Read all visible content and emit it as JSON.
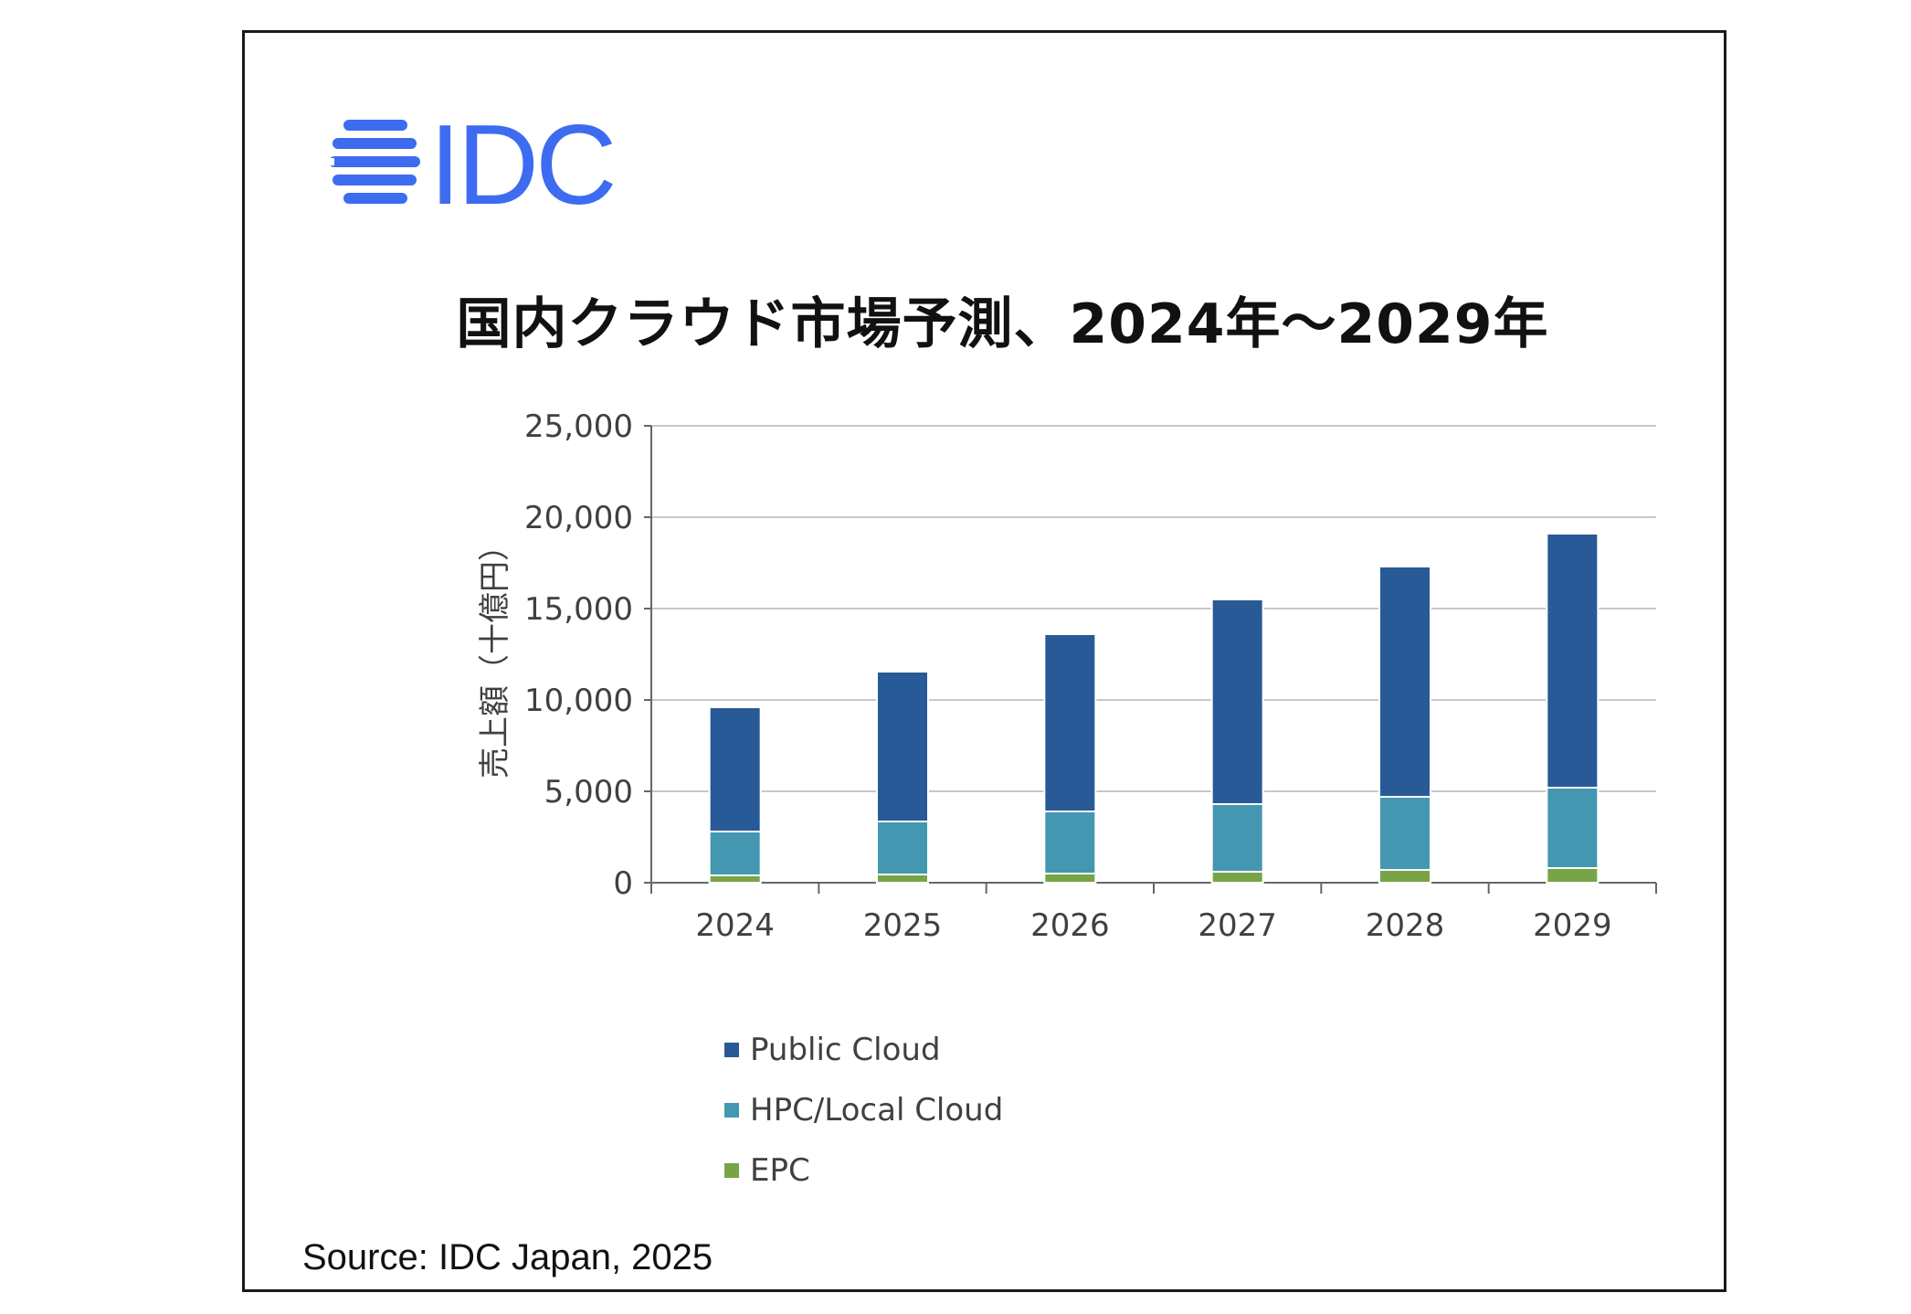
{
  "brand": {
    "logo_text": "IDC",
    "logo_color": "#3d6cf0"
  },
  "chart_data": {
    "type": "bar",
    "stacked": true,
    "title": "国内クラウド市場予測、2024年～2029年",
    "ylabel": "売上額（十億円）",
    "xlabel": "",
    "categories": [
      "2024",
      "2025",
      "2026",
      "2027",
      "2028",
      "2029"
    ],
    "ylim": [
      0,
      25000
    ],
    "yticks": [
      "25,000",
      "20,000",
      "15,000",
      "10,000",
      "5,000",
      "0"
    ],
    "ytick_values": [
      25000,
      20000,
      15000,
      10000,
      5000,
      0
    ],
    "grid": true,
    "legend_position": "bottom",
    "series": [
      {
        "name": "EPC",
        "color": "#77a545",
        "values": [
          400,
          450,
          500,
          600,
          700,
          800
        ]
      },
      {
        "name": "HPC/Local Cloud",
        "color": "#4497b0",
        "values": [
          2400,
          2900,
          3400,
          3700,
          4000,
          4400
        ]
      },
      {
        "name": "Public Cloud",
        "color": "#275a96",
        "values": [
          6800,
          8200,
          9700,
          11200,
          12600,
          13900
        ]
      }
    ]
  },
  "legend": {
    "items": [
      {
        "label": "Public Cloud",
        "color": "#275a96"
      },
      {
        "label": "HPC/Local Cloud",
        "color": "#4497b0"
      },
      {
        "label": "EPC",
        "color": "#77a545"
      }
    ]
  },
  "source": "Source: IDC Japan, 2025"
}
